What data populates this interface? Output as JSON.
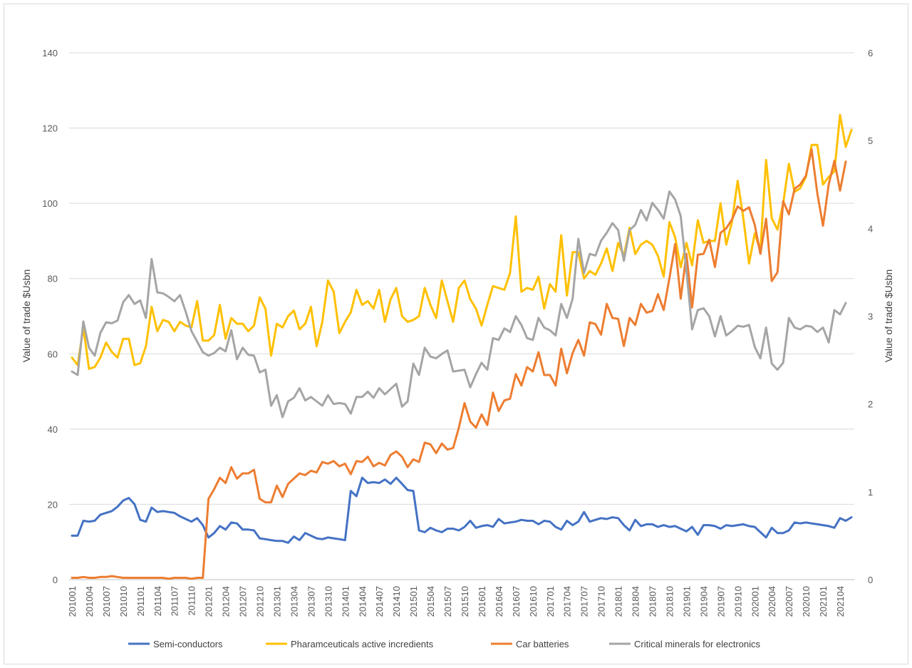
{
  "chart_data": {
    "type": "line",
    "title": "",
    "xlabel": "",
    "ylabel": "Value of trade $Usbn",
    "y2label": "Value of trade $Usbn",
    "ylim": [
      0,
      140
    ],
    "y2lim": [
      0,
      6
    ],
    "yticks": [
      "0",
      "20",
      "40",
      "60",
      "80",
      "100",
      "120",
      "140"
    ],
    "y2ticks": [
      "0",
      "1",
      "2",
      "3",
      "4",
      "5",
      "6"
    ],
    "grid": true,
    "legend": "bottom",
    "x_start_period": "201001",
    "x_tick_labels": [
      "201001",
      "201004",
      "201007",
      "201010",
      "201101",
      "201104",
      "201107",
      "201110",
      "201201",
      "201204",
      "201207",
      "201210",
      "201301",
      "201304",
      "201307",
      "201310",
      "201401",
      "201404",
      "201407",
      "201410",
      "201501",
      "201504",
      "201507",
      "201510",
      "201601",
      "201604",
      "201607",
      "201610",
      "201701",
      "201704",
      "201707",
      "201710",
      "201801",
      "201804",
      "201807",
      "201810",
      "201901",
      "201904",
      "201907",
      "201910",
      "202001",
      "202004",
      "202007",
      "202010",
      "202101",
      "202104"
    ],
    "series": [
      {
        "name": "Semi-conductors",
        "axis": "secondary",
        "color": "#4472c4",
        "values": [
          0.5,
          0.5,
          0.67,
          0.66,
          0.67,
          0.74,
          0.76,
          0.78,
          0.83,
          0.9,
          0.93,
          0.86,
          0.68,
          0.66,
          0.82,
          0.77,
          0.78,
          0.77,
          0.76,
          0.72,
          0.69,
          0.66,
          0.7,
          0.62,
          0.48,
          0.53,
          0.61,
          0.57,
          0.65,
          0.64,
          0.57,
          0.57,
          0.56,
          0.47,
          0.46,
          0.45,
          0.44,
          0.44,
          0.42,
          0.49,
          0.45,
          0.53,
          0.5,
          0.47,
          0.46,
          0.48,
          0.47,
          0.46,
          0.45,
          1.01,
          0.95,
          1.16,
          1.1,
          1.11,
          1.1,
          1.14,
          1.09,
          1.16,
          1.09,
          1.02,
          1.01,
          0.56,
          0.54,
          0.59,
          0.56,
          0.54,
          0.58,
          0.58,
          0.56,
          0.6,
          0.67,
          0.59,
          0.61,
          0.62,
          0.6,
          0.69,
          0.64,
          0.65,
          0.66,
          0.68,
          0.67,
          0.67,
          0.63,
          0.67,
          0.66,
          0.6,
          0.57,
          0.67,
          0.62,
          0.66,
          0.77,
          0.66,
          0.68,
          0.7,
          0.69,
          0.71,
          0.7,
          0.62,
          0.56,
          0.68,
          0.61,
          0.63,
          0.63,
          0.6,
          0.62,
          0.6,
          0.61,
          0.58,
          0.55,
          0.6,
          0.51,
          0.62,
          0.62,
          0.61,
          0.58,
          0.62,
          0.61,
          0.62,
          0.63,
          0.61,
          0.6,
          0.54,
          0.48,
          0.59,
          0.53,
          0.53,
          0.56,
          0.65,
          0.64,
          0.65,
          0.64,
          0.63,
          0.62,
          0.61,
          0.59,
          0.7,
          0.67,
          0.71
        ]
      },
      {
        "name": "Pharamceuticals active incredients",
        "axis": "primary",
        "color": "#ffc000",
        "values": [
          59,
          57,
          67,
          56,
          56.5,
          59,
          63,
          60.5,
          59,
          64,
          64,
          57,
          57.5,
          62,
          72.5,
          66,
          69,
          68.5,
          66,
          68.5,
          67.5,
          67,
          74,
          63.5,
          63.5,
          65,
          73,
          64,
          69.5,
          68,
          68,
          66,
          67.5,
          75,
          72,
          59.5,
          68,
          67,
          70,
          71.5,
          66.5,
          68,
          72.5,
          62,
          68.5,
          79.5,
          76.5,
          65.5,
          68.5,
          71,
          77,
          73,
          74,
          72,
          77,
          68.5,
          74.5,
          77.5,
          70,
          68.5,
          69,
          70,
          77.5,
          73,
          69.5,
          79.5,
          74,
          68.5,
          77.5,
          79.5,
          74.5,
          72,
          67.5,
          73,
          78,
          77.5,
          77,
          81.5,
          96.5,
          76.5,
          77.5,
          77,
          80.5,
          72,
          78.5,
          76.5,
          91.5,
          75.5,
          87,
          87,
          80,
          82,
          81,
          84,
          88,
          82,
          89.5,
          86,
          93.5,
          86.5,
          89,
          90,
          89,
          86,
          80.5,
          95,
          91,
          83,
          89.5,
          83.5,
          95.5,
          89.5,
          90,
          90,
          100,
          89,
          95,
          106,
          96,
          84,
          92,
          87.5,
          111.5,
          96,
          93,
          100,
          110.5,
          103,
          104,
          107,
          115.5,
          115.5,
          105,
          107,
          108.5,
          123.5,
          115,
          119.5
        ]
      },
      {
        "name": "Car batteries",
        "axis": "secondary",
        "color": "#ed7d31",
        "values": [
          0.02,
          0.02,
          0.03,
          0.02,
          0.02,
          0.03,
          0.03,
          0.04,
          0.03,
          0.02,
          0.02,
          0.02,
          0.02,
          0.02,
          0.02,
          0.02,
          0.02,
          0.01,
          0.02,
          0.02,
          0.02,
          0.01,
          0.02,
          0.02,
          0.92,
          1.03,
          1.16,
          1.1,
          1.28,
          1.15,
          1.21,
          1.21,
          1.25,
          0.92,
          0.88,
          0.88,
          1.07,
          0.94,
          1.09,
          1.15,
          1.21,
          1.19,
          1.24,
          1.22,
          1.34,
          1.32,
          1.35,
          1.29,
          1.32,
          1.2,
          1.35,
          1.34,
          1.4,
          1.29,
          1.33,
          1.3,
          1.42,
          1.46,
          1.4,
          1.28,
          1.37,
          1.34,
          1.56,
          1.54,
          1.44,
          1.55,
          1.48,
          1.5,
          1.73,
          2.01,
          1.8,
          1.73,
          1.88,
          1.76,
          2.13,
          1.92,
          2.04,
          2.06,
          2.34,
          2.21,
          2.42,
          2.37,
          2.59,
          2.33,
          2.33,
          2.21,
          2.63,
          2.35,
          2.58,
          2.73,
          2.55,
          2.93,
          2.91,
          2.79,
          3.14,
          2.98,
          2.97,
          2.66,
          2.98,
          2.9,
          3.14,
          3.04,
          3.06,
          3.25,
          3.07,
          3.43,
          3.82,
          3.2,
          3.71,
          3.1,
          3.7,
          3.71,
          3.87,
          3.56,
          3.95,
          4.0,
          4.1,
          4.25,
          4.2,
          4.24,
          4.04,
          3.71,
          4.11,
          3.4,
          3.5,
          4.31,
          4.16,
          4.45,
          4.5,
          4.6,
          4.9,
          4.4,
          4.03,
          4.5,
          4.77,
          4.43,
          4.76
        ]
      },
      {
        "name": "Critical minerals for electronics",
        "axis": "secondary",
        "color": "#a5a5a5",
        "values": [
          2.37,
          2.33,
          2.94,
          2.64,
          2.55,
          2.81,
          2.93,
          2.92,
          2.95,
          3.16,
          3.24,
          3.14,
          3.18,
          2.98,
          3.65,
          3.27,
          3.26,
          3.22,
          3.17,
          3.24,
          3.05,
          2.83,
          2.71,
          2.59,
          2.55,
          2.58,
          2.64,
          2.6,
          2.84,
          2.51,
          2.64,
          2.56,
          2.55,
          2.36,
          2.39,
          1.98,
          2.1,
          1.85,
          2.03,
          2.07,
          2.18,
          2.04,
          2.08,
          2.03,
          1.98,
          2.1,
          2.0,
          2.01,
          2.0,
          1.89,
          2.08,
          2.08,
          2.14,
          2.07,
          2.18,
          2.11,
          2.17,
          2.23,
          1.97,
          2.03,
          2.46,
          2.33,
          2.64,
          2.54,
          2.52,
          2.57,
          2.61,
          2.37,
          2.38,
          2.39,
          2.19,
          2.34,
          2.47,
          2.39,
          2.75,
          2.73,
          2.86,
          2.82,
          3.0,
          2.9,
          2.75,
          2.73,
          2.98,
          2.87,
          2.84,
          2.78,
          3.14,
          2.98,
          3.2,
          3.88,
          3.49,
          3.71,
          3.69,
          3.86,
          3.95,
          4.06,
          3.98,
          3.63,
          3.98,
          4.04,
          4.21,
          4.09,
          4.29,
          4.21,
          4.11,
          4.42,
          4.33,
          4.14,
          3.52,
          2.85,
          3.07,
          3.09,
          3.0,
          2.77,
          3.0,
          2.78,
          2.83,
          2.89,
          2.88,
          2.9,
          2.65,
          2.52,
          2.87,
          2.46,
          2.39,
          2.47,
          2.98,
          2.87,
          2.85,
          2.89,
          2.88,
          2.82,
          2.87,
          2.7,
          3.07,
          3.02,
          3.15
        ]
      }
    ]
  }
}
